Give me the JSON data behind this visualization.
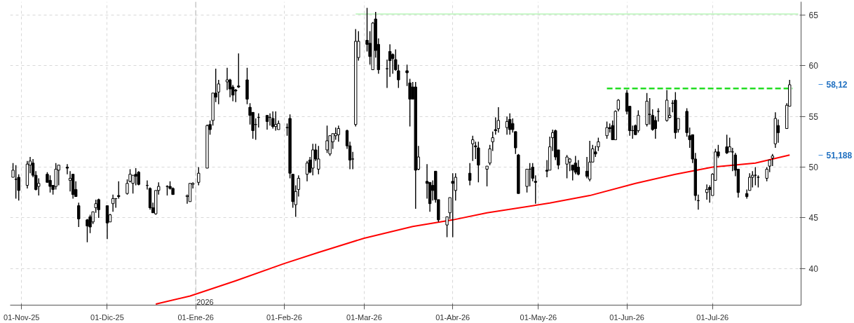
{
  "chart_data": {
    "type": "candlestick",
    "x": [
      "2025-10-29",
      "2025-10-30",
      "2025-10-31",
      "2025-11-03",
      "2025-11-04",
      "2025-11-05",
      "2025-11-06",
      "2025-11-07",
      "2025-11-10",
      "2025-11-11",
      "2025-11-12",
      "2025-11-13",
      "2025-11-14",
      "2025-11-17",
      "2025-11-18",
      "2025-11-19",
      "2025-11-20",
      "2025-11-21",
      "2025-11-24",
      "2025-11-25",
      "2025-11-26",
      "2025-11-27",
      "2025-11-28",
      "2025-12-01",
      "2025-12-02",
      "2025-12-03",
      "2025-12-04",
      "2025-12-05",
      "2025-12-08",
      "2025-12-09",
      "2025-12-10",
      "2025-12-11",
      "2025-12-12",
      "2025-12-15",
      "2025-12-16",
      "2025-12-17",
      "2025-12-18",
      "2025-12-19",
      "2025-12-22",
      "2025-12-23",
      "2025-12-24",
      "2025-12-29",
      "2025-12-30",
      "2025-12-31",
      "2026-01-02",
      "2026-01-05",
      "2026-01-06",
      "2026-01-07",
      "2026-01-08",
      "2026-01-09",
      "2026-01-12",
      "2026-01-13",
      "2026-01-14",
      "2026-01-15",
      "2026-01-16",
      "2026-01-19",
      "2026-01-20",
      "2026-01-21",
      "2026-01-22",
      "2026-01-23",
      "2026-01-26",
      "2026-01-27",
      "2026-01-28",
      "2026-01-29",
      "2026-01-30",
      "2026-02-02",
      "2026-02-03",
      "2026-02-04",
      "2026-02-05",
      "2026-02-06",
      "2026-02-09",
      "2026-02-10",
      "2026-02-11",
      "2026-02-12",
      "2026-02-13",
      "2026-02-16",
      "2026-02-17",
      "2026-02-18",
      "2026-02-19",
      "2026-02-20",
      "2026-02-23",
      "2026-02-24",
      "2026-02-25",
      "2026-02-26",
      "2026-02-27",
      "2026-03-02",
      "2026-03-03",
      "2026-03-04",
      "2026-03-05",
      "2026-03-06",
      "2026-03-09",
      "2026-03-10",
      "2026-03-11",
      "2026-03-12",
      "2026-03-13",
      "2026-03-16",
      "2026-03-17",
      "2026-03-18",
      "2026-03-19",
      "2026-03-20",
      "2026-03-23",
      "2026-03-24",
      "2026-03-25",
      "2026-03-26",
      "2026-03-27",
      "2026-03-30",
      "2026-03-31",
      "2026-04-01",
      "2026-04-02",
      "2026-04-07",
      "2026-04-08",
      "2026-04-09",
      "2026-04-10",
      "2026-04-13",
      "2026-04-14",
      "2026-04-15",
      "2026-04-16",
      "2026-04-17",
      "2026-04-20",
      "2026-04-21",
      "2026-04-22",
      "2026-04-23",
      "2026-04-24",
      "2026-04-27",
      "2026-04-28",
      "2026-04-29",
      "2026-04-30",
      "2026-05-04",
      "2026-05-05",
      "2026-05-06",
      "2026-05-07",
      "2026-05-08",
      "2026-05-11",
      "2026-05-12",
      "2026-05-13",
      "2026-05-14",
      "2026-05-15",
      "2026-05-18",
      "2026-05-19",
      "2026-05-20",
      "2026-05-21",
      "2026-05-22",
      "2026-05-25",
      "2026-05-26",
      "2026-05-27",
      "2026-05-28",
      "2026-05-29",
      "2026-06-01",
      "2026-06-02",
      "2026-06-03",
      "2026-06-04",
      "2026-06-05",
      "2026-06-08",
      "2026-06-09",
      "2026-06-10",
      "2026-06-11",
      "2026-06-12",
      "2026-06-15",
      "2026-06-16",
      "2026-06-17",
      "2026-06-18",
      "2026-06-19",
      "2026-06-22",
      "2026-06-23",
      "2026-06-24",
      "2026-06-25",
      "2026-06-26",
      "2026-06-29",
      "2026-06-30",
      "2026-07-01",
      "2026-07-02",
      "2026-07-03",
      "2026-07-06",
      "2026-07-07",
      "2026-07-08",
      "2026-07-09",
      "2026-07-10",
      "2026-07-13",
      "2026-07-14",
      "2026-07-15",
      "2026-07-16",
      "2026-07-17",
      "2026-07-20",
      "2026-07-21",
      "2026-07-22",
      "2026-07-23",
      "2026-07-24",
      "2026-07-27",
      "2026-07-28"
    ],
    "ohlc": [
      [
        49.0,
        50.4,
        49.0,
        49.7
      ],
      [
        48.8,
        50.2,
        46.9,
        48.8
      ],
      [
        49.0,
        49.3,
        46.7,
        47.7
      ],
      [
        48.2,
        50.6,
        47.9,
        50.3
      ],
      [
        50.2,
        51.0,
        49.4,
        50.6
      ],
      [
        50.4,
        50.8,
        49.0,
        49.2
      ],
      [
        49.2,
        49.6,
        47.7,
        47.8
      ],
      [
        48.1,
        48.9,
        47.2,
        48.4
      ],
      [
        49.3,
        49.5,
        48.5,
        48.5
      ],
      [
        48.7,
        49.2,
        47.5,
        48.1
      ],
      [
        48.2,
        48.2,
        47.3,
        47.8
      ],
      [
        48.1,
        50.4,
        47.8,
        49.8
      ],
      [
        49.7,
        50.2,
        48.2,
        50.2
      ],
      [
        50.0,
        50.3,
        49.3,
        49.9
      ],
      [
        48.7,
        49.6,
        47.6,
        48.9
      ],
      [
        49.3,
        49.3,
        46.9,
        47.3
      ],
      [
        47.8,
        48.6,
        47.1,
        47.1
      ],
      [
        46.2,
        46.5,
        44.1,
        44.9
      ],
      [
        44.8,
        44.9,
        42.6,
        44.2
      ],
      [
        45.1,
        45.3,
        43.5,
        44.1
      ],
      [
        44.6,
        45.6,
        44.4,
        45.6
      ],
      [
        46.0,
        46.8,
        45.5,
        46.4
      ],
      [
        46.8,
        46.9,
        45.0,
        45.8
      ],
      [
        46.2,
        46.2,
        42.9,
        44.5
      ],
      [
        44.6,
        45.4,
        44.6,
        45.3
      ],
      [
        46.4,
        47.3,
        45.6,
        46.9
      ],
      [
        46.9,
        46.9,
        46.0,
        46.9
      ],
      [
        47.2,
        48.6,
        46.9,
        47.1
      ],
      [
        47.4,
        48.8,
        47.3,
        48.4
      ],
      [
        48.6,
        49.8,
        48.5,
        49.3
      ],
      [
        48.4,
        49.2,
        47.4,
        49.2
      ],
      [
        49.3,
        49.9,
        48.2,
        49.1
      ],
      [
        49.5,
        49.6,
        48.2,
        48.3
      ],
      [
        48.2,
        48.7,
        47.8,
        48.2
      ],
      [
        47.9,
        48.0,
        45.8,
        46.0
      ],
      [
        46.0,
        46.5,
        45.5,
        45.5
      ],
      [
        45.4,
        47.7,
        45.3,
        47.7
      ],
      [
        47.7,
        48.5,
        47.3,
        48.1
      ],
      [
        48.1,
        48.2,
        47.2,
        48.1
      ],
      [
        48.1,
        48.6,
        47.8,
        47.9
      ],
      [
        47.9,
        48.0,
        47.3,
        47.3
      ],
      [
        47.1,
        47.3,
        46.4,
        47.2
      ],
      [
        46.6,
        48.4,
        46.6,
        48.4
      ],
      [
        48.3,
        48.5,
        47.9,
        48.4
      ],
      [
        48.5,
        50.0,
        48.2,
        49.4
      ],
      [
        49.9,
        54.2,
        49.9,
        54.1
      ],
      [
        54.2,
        54.6,
        53.2,
        53.7
      ],
      [
        54.6,
        57.3,
        54.1,
        57.3
      ],
      [
        57.3,
        59.7,
        56.4,
        56.9
      ],
      [
        57.4,
        58.6,
        56.2,
        58.2
      ],
      [
        58.4,
        59.8,
        57.6,
        58.6
      ],
      [
        58.6,
        58.7,
        56.9,
        57.7
      ],
      [
        57.9,
        58.1,
        56.5,
        57.1
      ],
      [
        57.6,
        57.7,
        56.4,
        57.5
      ],
      [
        58.0,
        61.2,
        57.8,
        57.9
      ],
      [
        58.6,
        59.8,
        56.2,
        56.7
      ],
      [
        55.9,
        56.3,
        54.2,
        55.1
      ],
      [
        55.4,
        55.4,
        52.8,
        53.6
      ],
      [
        54.2,
        54.8,
        52.7,
        54.2
      ],
      [
        54.9,
        55.3,
        53.9,
        54.9
      ],
      [
        55.1,
        55.1,
        53.7,
        54.5
      ],
      [
        54.9,
        55.3,
        54.1,
        54.9
      ],
      [
        54.8,
        55.5,
        53.8,
        54.0
      ],
      [
        54.0,
        55.5,
        53.6,
        54.2
      ],
      [
        53.7,
        54.6,
        53.7,
        54.3
      ],
      [
        53.9,
        54.3,
        53.1,
        53.9
      ],
      [
        54.8,
        55.2,
        48.9,
        49.4
      ],
      [
        49.3,
        49.3,
        46.0,
        46.6
      ],
      [
        46.3,
        48.2,
        45.1,
        47.6
      ],
      [
        47.8,
        49.2,
        47.1,
        48.9
      ],
      [
        49.3,
        50.6,
        48.6,
        50.4
      ],
      [
        50.7,
        51.0,
        49.4,
        49.5
      ],
      [
        49.9,
        52.3,
        49.2,
        51.7
      ],
      [
        51.7,
        52.3,
        50.6,
        50.8
      ],
      [
        49.8,
        52.1,
        49.3,
        50.8
      ],
      [
        51.7,
        54.1,
        51.4,
        52.6
      ],
      [
        51.3,
        53.1,
        51.1,
        53.1
      ],
      [
        52.5,
        53.3,
        51.8,
        53.3
      ],
      [
        53.1,
        53.9,
        52.7,
        53.3
      ],
      [
        53.2,
        54.1,
        52.5,
        53.8
      ],
      [
        53.6,
        53.7,
        51.8,
        52.1
      ],
      [
        52.1,
        52.5,
        49.8,
        50.7
      ],
      [
        50.8,
        51.5,
        49.8,
        50.8
      ],
      [
        54.2,
        63.6,
        54.0,
        62.4
      ],
      [
        60.8,
        63.4,
        60.5,
        62.4
      ],
      [
        62.5,
        65.7,
        61.4,
        62.1
      ],
      [
        62.2,
        63.4,
        60.1,
        60.9
      ],
      [
        59.6,
        64.3,
        59.6,
        64.2
      ],
      [
        64.6,
        65.3,
        60.8,
        61.5
      ],
      [
        62.1,
        62.7,
        59.2,
        59.6
      ],
      [
        59.7,
        60.6,
        57.8,
        59.7
      ],
      [
        61.4,
        62.1,
        58.9,
        60.5
      ],
      [
        61.1,
        61.2,
        59.2,
        60.7
      ],
      [
        60.6,
        61.6,
        59.5,
        59.6
      ],
      [
        59.5,
        60.1,
        57.8,
        58.6
      ],
      [
        59.5,
        60.1,
        58.0,
        59.3
      ],
      [
        58.3,
        58.7,
        54.0,
        56.7
      ],
      [
        57.9,
        58.4,
        56.7,
        56.7
      ],
      [
        57.9,
        58.4,
        45.9,
        49.7
      ],
      [
        49.8,
        52.1,
        49.7,
        51.0
      ],
      [
        48.6,
        50.3,
        46.9,
        48.4
      ],
      [
        48.5,
        48.5,
        45.6,
        46.4
      ],
      [
        48.2,
        48.7,
        46.7,
        47.7
      ],
      [
        49.6,
        49.6,
        46.5,
        46.8
      ],
      [
        46.8,
        46.8,
        44.6,
        44.8
      ],
      [
        44.3,
        45.1,
        43.1,
        45.1
      ],
      [
        45.5,
        47.0,
        44.9,
        47.0
      ],
      [
        48.6,
        49.4,
        43.1,
        48.4
      ],
      [
        47.7,
        49.4,
        46.7,
        49.0
      ],
      [
        49.4,
        50.4,
        48.2,
        48.7
      ],
      [
        52.3,
        53.1,
        50.6,
        52.7
      ],
      [
        52.1,
        52.5,
        50.8,
        52.0
      ],
      [
        51.9,
        52.5,
        48.5,
        50.2
      ],
      [
        49.8,
        50.1,
        48.1,
        50.1
      ],
      [
        50.4,
        52.2,
        50.2,
        51.8
      ],
      [
        52.5,
        53.5,
        51.6,
        52.9
      ],
      [
        53.7,
        54.9,
        53.2,
        53.6
      ],
      [
        53.8,
        55.9,
        53.4,
        54.6
      ],
      [
        53.9,
        55.0,
        53.2,
        54.5
      ],
      [
        54.7,
        55.3,
        53.2,
        53.7
      ],
      [
        54.3,
        54.8,
        53.4,
        53.7
      ],
      [
        53.5,
        53.5,
        51.3,
        51.9
      ],
      [
        51.2,
        51.3,
        47.4,
        47.4
      ],
      [
        48.1,
        49.8,
        47.5,
        49.8
      ],
      [
        49.8,
        50.4,
        48.1,
        49.8
      ],
      [
        50.0,
        50.4,
        48.6,
        48.9
      ],
      [
        48.6,
        49.2,
        46.4,
        48.5
      ],
      [
        49.7,
        50.7,
        49.0,
        49.6
      ],
      [
        49.7,
        53.0,
        49.7,
        52.0
      ],
      [
        52.9,
        53.7,
        51.6,
        53.4
      ],
      [
        53.6,
        53.7,
        50.7,
        51.0
      ],
      [
        51.7,
        51.7,
        49.8,
        50.2
      ],
      [
        50.3,
        51.2,
        48.9,
        51.0
      ],
      [
        50.5,
        50.9,
        49.6,
        50.8
      ],
      [
        50.2,
        50.2,
        48.7,
        49.7
      ],
      [
        50.4,
        51.1,
        49.3,
        49.5
      ],
      [
        50.0,
        50.7,
        49.2,
        49.3
      ],
      [
        49.6,
        51.0,
        48.9,
        49.1
      ],
      [
        48.8,
        52.6,
        48.6,
        50.5
      ],
      [
        50.5,
        52.2,
        50.5,
        51.8
      ],
      [
        51.5,
        52.1,
        51.0,
        51.3
      ],
      [
        52.0,
        52.9,
        51.6,
        52.5
      ],
      [
        53.1,
        54.5,
        52.8,
        53.9
      ],
      [
        53.9,
        54.3,
        53.4,
        53.8
      ],
      [
        54.1,
        54.6,
        52.7,
        52.7
      ],
      [
        52.7,
        55.6,
        52.7,
        55.5
      ],
      [
        55.7,
        56.7,
        55.5,
        56.6
      ],
      [
        57.3,
        57.6,
        55.2,
        55.5
      ],
      [
        56.0,
        56.0,
        53.1,
        53.6
      ],
      [
        53.6,
        54.1,
        52.8,
        53.6
      ],
      [
        54.1,
        54.2,
        53.2,
        53.2
      ],
      [
        53.6,
        55.6,
        53.4,
        55.1
      ],
      [
        54.2,
        57.3,
        54.0,
        56.5
      ],
      [
        55.2,
        56.8,
        54.2,
        55.2
      ],
      [
        55.1,
        55.7,
        53.6,
        53.7
      ],
      [
        54.6,
        55.0,
        52.8,
        53.8
      ],
      [
        55.5,
        55.8,
        54.5,
        55.5
      ],
      [
        54.6,
        57.6,
        54.5,
        56.6
      ],
      [
        54.9,
        55.9,
        54.8,
        55.1
      ],
      [
        56.3,
        56.6,
        55.4,
        56.3
      ],
      [
        56.6,
        57.4,
        52.8,
        53.4
      ],
      [
        53.7,
        54.8,
        53.4,
        54.8
      ],
      [
        55.5,
        55.8,
        53.0,
        53.4
      ],
      [
        53.1,
        53.9,
        51.9,
        52.7
      ],
      [
        53.2,
        53.2,
        50.4,
        50.8
      ],
      [
        50.8,
        51.4,
        46.7,
        47.2
      ],
      [
        46.7,
        47.3,
        45.8,
        46.7
      ],
      [
        47.5,
        48.3,
        46.8,
        47.8
      ],
      [
        48.0,
        48.2,
        46.5,
        47.8
      ],
      [
        47.2,
        49.4,
        47.2,
        49.3
      ],
      [
        48.7,
        51.8,
        48.7,
        51.5
      ],
      [
        51.5,
        52.2,
        50.9,
        51.1
      ],
      [
        52.0,
        53.2,
        51.3,
        51.4
      ],
      [
        51.5,
        52.9,
        51.5,
        52.0
      ],
      [
        51.5,
        51.9,
        49.6,
        51.5
      ],
      [
        51.2,
        51.4,
        49.1,
        49.7
      ],
      [
        49.8,
        49.8,
        47.0,
        47.5
      ],
      [
        47.4,
        47.8,
        46.9,
        47.1
      ],
      [
        47.7,
        49.4,
        47.7,
        49.0
      ],
      [
        49.0,
        49.6,
        48.0,
        49.2
      ],
      [
        49.2,
        50.0,
        48.2,
        49.2
      ],
      [
        49.0,
        49.2,
        48.0,
        49.0
      ],
      [
        48.9,
        50.0,
        48.6,
        49.8
      ],
      [
        50.1,
        50.7,
        49.5,
        50.7
      ],
      [
        50.9,
        51.3,
        50.1,
        51.1
      ],
      [
        52.3,
        55.4,
        51.9,
        54.8
      ],
      [
        54.1,
        54.7,
        52.4,
        53.4
      ],
      [
        53.8,
        56.3,
        53.8,
        56.1
      ],
      [
        56.0,
        58.6,
        56.0,
        58.12
      ]
    ],
    "color": "#000000",
    "series": [
      {
        "type": "line",
        "color": "#ff0000",
        "x": [
          "2025-12-18",
          "2025-12-30",
          "2026-01-15",
          "2026-02-01",
          "2026-02-13",
          "2026-03-01",
          "2026-03-18",
          "2026-04-01",
          "2026-04-13",
          "2026-05-05",
          "2026-05-19",
          "2026-06-04",
          "2026-06-18",
          "2026-07-01",
          "2026-07-16",
          "2026-07-28"
        ],
        "values": [
          36.5,
          37.3,
          38.8,
          40.5,
          41.6,
          43.0,
          44.15,
          44.8,
          45.5,
          46.46,
          47.2,
          48.4,
          49.3,
          50.0,
          50.4,
          51.188
        ]
      },
      {
        "type": "line",
        "color": "#c8f7c8",
        "x": [
          "2026-02-26",
          "2026-07-31"
        ],
        "values": [
          65.1,
          65.1
        ]
      },
      {
        "type": "line",
        "color": "#22dd22",
        "line_style": "dashed",
        "x": [
          "2026-05-25",
          "2026-07-29"
        ],
        "values": [
          57.75,
          57.75
        ]
      }
    ],
    "xlim": [
      "2025-10-28",
      "2026-08-01"
    ],
    "xticks": [
      {
        "value": "2025-11-01",
        "label": "01-Nov-25"
      },
      {
        "value": "2025-12-01",
        "label": "01-Dic-25"
      },
      {
        "value": "2026-01-01",
        "label": "01-Ene-26"
      },
      {
        "value": "2026-02-01",
        "label": "01-Feb-26"
      },
      {
        "value": "2026-03-01",
        "label": "01-Mar-26"
      },
      {
        "value": "2026-04-01",
        "label": "01-Abr-26"
      },
      {
        "value": "2026-05-01",
        "label": "01-May-26"
      },
      {
        "value": "2026-06-01",
        "label": "01-Jun-26"
      },
      {
        "value": "2026-07-01",
        "label": "01-Jul-26"
      }
    ],
    "ylim": [
      36.4,
      66.3
    ],
    "yticks": [
      40,
      45,
      50,
      55,
      60,
      65
    ],
    "grid": true,
    "ref_lines": [
      {
        "axis": "x",
        "value": "2026-01-01",
        "label": "2026",
        "color": "#c8c8c8",
        "line_style": "dashed"
      }
    ],
    "annotations": [
      "58,12",
      "51,188"
    ]
  }
}
